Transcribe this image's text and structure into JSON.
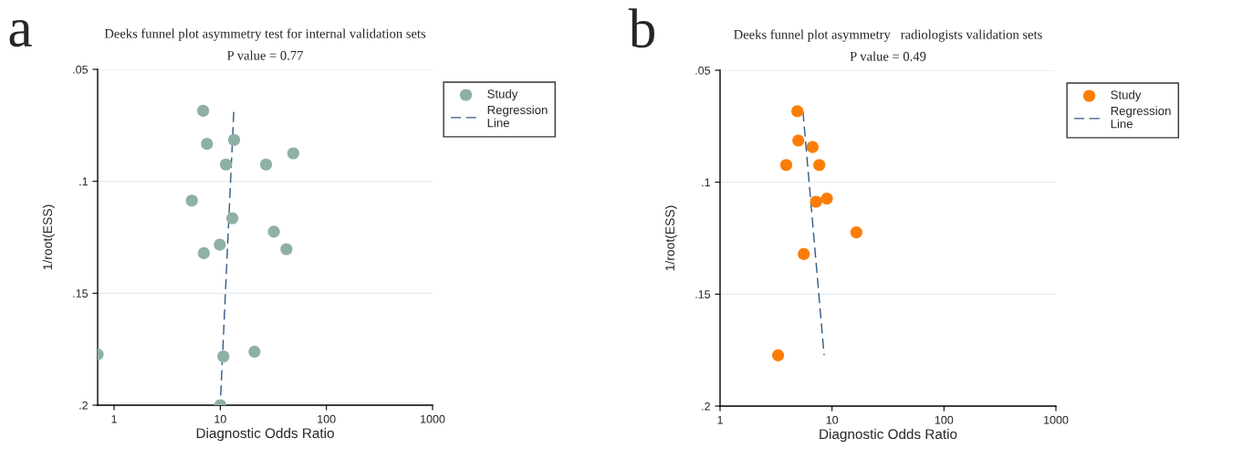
{
  "chart_data": [
    {
      "type": "scatter",
      "title": "Deeks funnel plot asymmetry test for internal validation sets",
      "subtitle": "P value = 0.77",
      "xlabel": "Diagnostic Odds Ratio",
      "ylabel": "1/root(ESS)",
      "annotations": [
        "a"
      ],
      "log": "x",
      "xlim": [
        0.7,
        1000
      ],
      "xticks": [
        1,
        10,
        100,
        1000
      ],
      "ylim": [
        0.2,
        0.05
      ],
      "yticks": [
        {
          "value": 0.05,
          "label": ".05"
        },
        {
          "value": 0.1,
          "label": ".1"
        },
        {
          "value": 0.15,
          "label": ".15"
        },
        {
          "value": 0.2,
          "label": ".2"
        }
      ],
      "grid": "y",
      "legend": "top right",
      "series": [
        {
          "name": "Study",
          "color": "#8fb0a4",
          "marker": "circle",
          "x": [
            6.9,
            7.5,
            13.5,
            48.7,
            11.3,
            27,
            5.4,
            13,
            32,
            9.9,
            7.0,
            42,
            0.7,
            10.7,
            21,
            10
          ],
          "values": [
            0.0685,
            0.0833,
            0.0815,
            0.0875,
            0.0925,
            0.0925,
            0.1086,
            0.1165,
            0.1225,
            0.1283,
            0.1321,
            0.1303,
            0.1773,
            0.1782,
            0.1761,
            0.2
          ]
        },
        {
          "name": "Regression Line",
          "type": "line",
          "color": "#2e5a87",
          "line_style": "dashed",
          "x": [
            13.4,
            10
          ],
          "values": [
            0.069,
            0.2
          ]
        }
      ]
    },
    {
      "type": "scatter",
      "title": "Deeks funnel plot asymmetry   radiologists validation sets",
      "subtitle": "P value = 0.49",
      "xlabel": "Diagnostic Odds Ratio",
      "ylabel": "1/root(ESS)",
      "annotations": [
        "b"
      ],
      "log": "x",
      "xlim": [
        1,
        1000
      ],
      "xticks": [
        1,
        10,
        100,
        1000
      ],
      "ylim": [
        0.2,
        0.05
      ],
      "yticks": [
        {
          "value": 0.05,
          "label": ".05"
        },
        {
          "value": 0.1,
          "label": ".1"
        },
        {
          "value": 0.15,
          "label": ".15"
        },
        {
          "value": 0.2,
          "label": ".2"
        }
      ],
      "grid": "y",
      "legend": "top right",
      "series": [
        {
          "name": "Study",
          "color": "#fb7d07",
          "marker": "circle",
          "x": [
            4.9,
            5.0,
            6.7,
            3.9,
            7.7,
            9.0,
            7.2,
            16.5,
            5.6,
            3.3
          ],
          "values": [
            0.0683,
            0.0814,
            0.0843,
            0.0923,
            0.0923,
            0.1073,
            0.1087,
            0.1224,
            0.1321,
            0.1773
          ]
        },
        {
          "name": "Regression Line",
          "type": "line",
          "color": "#2e5a87",
          "line_style": "dashed",
          "x": [
            5.5,
            8.5
          ],
          "values": [
            0.0683,
            0.1773
          ]
        }
      ]
    }
  ]
}
